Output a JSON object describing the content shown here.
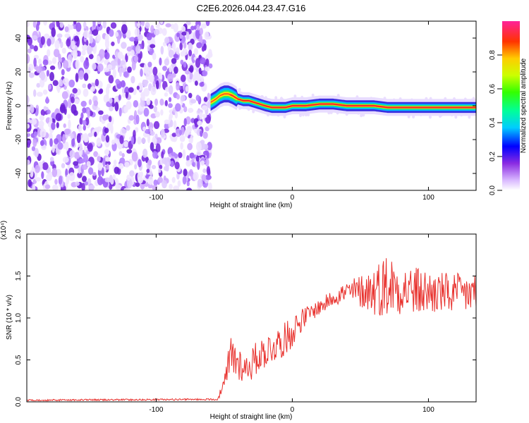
{
  "title": "C2E6.2026.044.23.47.G16",
  "chart_data": [
    {
      "type": "heatmap",
      "name": "spectrogram",
      "xlabel": "Height of straight line (km)",
      "ylabel": "Frequency (Hz)",
      "xlim": [
        -195,
        135
      ],
      "ylim": [
        -50,
        50
      ],
      "xticks": [
        -100,
        0,
        100
      ],
      "yticks": [
        -40,
        -20,
        0,
        20,
        40
      ],
      "noise_region": [
        -195,
        -60
      ],
      "signal_track": {
        "x": [
          -60,
          -56,
          -53,
          -50,
          -47,
          -44,
          -40,
          -36,
          -32,
          -28,
          -24,
          -20,
          -15,
          -10,
          -5,
          0,
          10,
          20,
          30,
          40,
          50,
          60,
          70,
          80,
          90,
          100,
          110,
          120,
          135
        ],
        "freq": [
          2,
          4,
          6,
          7,
          7,
          6,
          4,
          3,
          3,
          2,
          1,
          0,
          -1,
          -1,
          -1,
          0,
          0,
          1,
          1,
          0,
          0,
          0,
          -1,
          -1,
          -1,
          -1,
          -1,
          -1,
          -1
        ]
      },
      "colorbar": {
        "label": "Normalized spectral amplitude",
        "range": [
          0.0,
          1.0
        ],
        "ticks": [
          "0.0",
          "0.2",
          "0.4",
          "0.6",
          "0.8"
        ]
      }
    },
    {
      "type": "line",
      "name": "snr",
      "xlabel": "Height of straight line (km)",
      "ylabel": "SNR (10 * v/v)",
      "yscale_label": "(x10⁴)",
      "xlim": [
        -195,
        135
      ],
      "ylim": [
        0.0,
        2.0
      ],
      "xticks": [
        -100,
        0,
        100
      ],
      "yticks": [
        "0.0",
        "0.5",
        "1.0",
        "1.5",
        "2.0"
      ],
      "series": [
        {
          "name": "SNR",
          "color": "#e8302c",
          "envelope": {
            "x": [
              -195,
              -55,
              -50,
              -45,
              -40,
              -35,
              -30,
              -25,
              -20,
              -15,
              -10,
              -5,
              0,
              5,
              10,
              15,
              20,
              25,
              30,
              35,
              40,
              50,
              60,
              70,
              80,
              90,
              100,
              110,
              120,
              135
            ],
            "mean": [
              0.02,
              0.03,
              0.2,
              0.55,
              0.48,
              0.4,
              0.45,
              0.55,
              0.6,
              0.65,
              0.7,
              0.75,
              0.85,
              0.95,
              1.02,
              1.08,
              1.13,
              1.18,
              1.25,
              1.28,
              1.3,
              1.32,
              1.33,
              1.4,
              1.35,
              1.32,
              1.3,
              1.3,
              1.28,
              1.3
            ],
            "amp": [
              0.01,
              0.01,
              0.1,
              0.3,
              0.25,
              0.15,
              0.2,
              0.2,
              0.2,
              0.2,
              0.2,
              0.2,
              0.2,
              0.15,
              0.12,
              0.1,
              0.1,
              0.1,
              0.1,
              0.12,
              0.15,
              0.2,
              0.3,
              0.4,
              0.3,
              0.3,
              0.28,
              0.25,
              0.25,
              0.25
            ]
          }
        }
      ]
    }
  ]
}
